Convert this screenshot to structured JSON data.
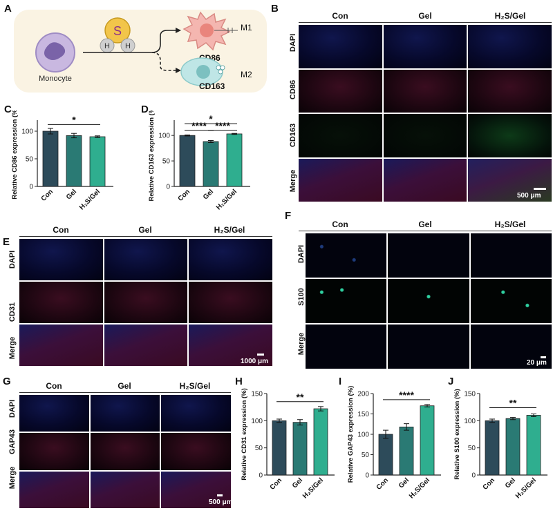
{
  "panels": {
    "A": {
      "label": "A",
      "monocyte": "Monocyte",
      "s": "S",
      "h": "H",
      "m1": "M1",
      "m2": "M2",
      "cd86": "CD86",
      "cd163": "CD163"
    },
    "B": {
      "label": "B",
      "cols": [
        "Con",
        "Gel",
        "H₂S/Gel"
      ],
      "rows": [
        "DAPI",
        "CD86",
        "CD163",
        "Merge"
      ],
      "scale": "500 μm"
    },
    "C": {
      "label": "C"
    },
    "D": {
      "label": "D"
    },
    "E": {
      "label": "E",
      "cols": [
        "Con",
        "Gel",
        "H₂S/Gel"
      ],
      "rows": [
        "DAPI",
        "CD31",
        "Merge"
      ],
      "scale": "1000 μm"
    },
    "F": {
      "label": "F",
      "cols": [
        "Con",
        "Gel",
        "H₂S/Gel"
      ],
      "rows": [
        "DAPI",
        "S100",
        "Merge"
      ],
      "scale": "20 μm"
    },
    "G": {
      "label": "G",
      "cols": [
        "Con",
        "Gel",
        "H₂S/Gel"
      ],
      "rows": [
        "DAPI",
        "GAP43",
        "Merge"
      ],
      "scale": "500 μm"
    },
    "H": {
      "label": "H"
    },
    "I": {
      "label": "I"
    },
    "J": {
      "label": "J"
    }
  },
  "colors": {
    "con": "#2d4b5a",
    "gel": "#2a7a74",
    "h2s": "#2fae8f"
  },
  "chart_data": [
    {
      "id": "C",
      "type": "bar",
      "categories": [
        "Con",
        "Gel",
        "H₂S/Gel"
      ],
      "values": [
        100,
        92,
        90
      ],
      "errors": [
        5,
        4,
        1.5
      ],
      "ylabel": "Relative CD86 expression (%)",
      "ylim": [
        0,
        120
      ],
      "yticks": [
        0,
        50,
        100
      ],
      "sig": [
        {
          "from": 0,
          "to": 2,
          "label": "*",
          "y": 112
        }
      ]
    },
    {
      "id": "D",
      "type": "bar",
      "categories": [
        "Con",
        "Gel",
        "H₂S/Gel"
      ],
      "values": [
        100,
        88,
        103
      ],
      "errors": [
        1,
        2,
        1
      ],
      "ylabel": "Relative CD163 expression (%)",
      "ylim": [
        0,
        130
      ],
      "yticks": [
        0,
        50,
        100
      ],
      "sig": [
        {
          "from": 0,
          "to": 2,
          "label": "*",
          "y": 123
        },
        {
          "from": 0,
          "to": 1,
          "label": "****",
          "y": 110
        },
        {
          "from": 1,
          "to": 2,
          "label": "****",
          "y": 110
        }
      ]
    },
    {
      "id": "H",
      "type": "bar",
      "categories": [
        "Con",
        "Gel",
        "H₂S/Gel"
      ],
      "values": [
        100,
        97,
        122
      ],
      "errors": [
        3,
        5,
        4
      ],
      "ylabel": "Relative CD31 expression (%)",
      "ylim": [
        0,
        150
      ],
      "yticks": [
        0,
        50,
        100,
        150
      ],
      "sig": [
        {
          "from": 0,
          "to": 2,
          "label": "**",
          "y": 135
        }
      ]
    },
    {
      "id": "I",
      "type": "bar",
      "categories": [
        "Con",
        "Gel",
        "H₂S/Gel"
      ],
      "values": [
        100,
        118,
        170
      ],
      "errors": [
        10,
        8,
        3
      ],
      "ylabel": "Relative GAP43 expression (%)",
      "ylim": [
        0,
        200
      ],
      "yticks": [
        0,
        50,
        100,
        150,
        200
      ],
      "sig": [
        {
          "from": 0,
          "to": 2,
          "label": "****",
          "y": 185
        }
      ]
    },
    {
      "id": "J",
      "type": "bar",
      "categories": [
        "Con",
        "Gel",
        "H₂S/Gel"
      ],
      "values": [
        100,
        104,
        110
      ],
      "errors": [
        3,
        2,
        2.5
      ],
      "ylabel": "Relative S100 expression (%)",
      "ylim": [
        0,
        150
      ],
      "yticks": [
        0,
        50,
        100,
        150
      ],
      "sig": [
        {
          "from": 0,
          "to": 2,
          "label": "**",
          "y": 124
        }
      ]
    }
  ]
}
